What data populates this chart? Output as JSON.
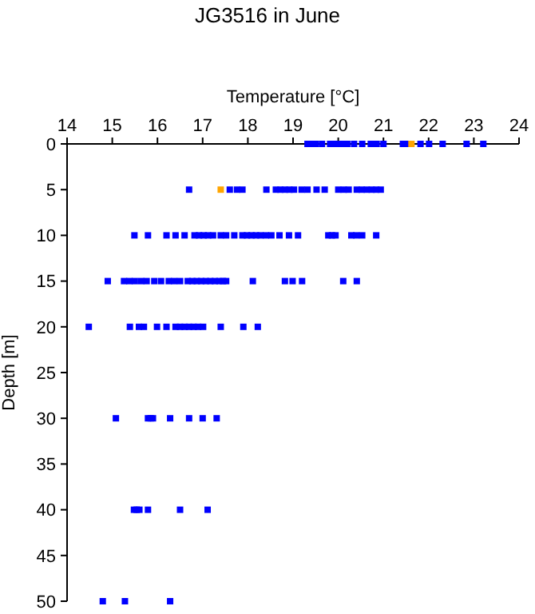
{
  "chart_data": {
    "type": "scatter",
    "title": "JG3516 in June",
    "xlabel": "Temperature [°C]",
    "ylabel": "Depth [m]",
    "xlim": [
      14,
      24
    ],
    "xticks": [
      14,
      15,
      16,
      17,
      18,
      19,
      20,
      21,
      22,
      23,
      24
    ],
    "ylim": [
      50,
      0
    ],
    "yticks": [
      0,
      5,
      10,
      15,
      20,
      25,
      30,
      35,
      40,
      45,
      50
    ],
    "marker": "square",
    "series": [
      {
        "color": "#0000ff",
        "x": [
          19.32,
          19.4,
          19.5,
          19.64,
          19.82,
          19.9,
          20.0,
          20.1,
          20.2,
          20.35,
          20.53,
          20.72,
          20.85,
          21.0,
          21.43,
          21.53,
          21.82,
          22.01,
          22.31,
          22.84,
          23.21,
          16.7,
          17.6,
          17.76,
          17.88,
          18.41,
          18.62,
          18.72,
          18.82,
          18.92,
          19.02,
          19.19,
          19.32,
          19.52,
          19.7,
          20.0,
          20.12,
          20.23,
          20.41,
          20.52,
          20.63,
          20.74,
          20.84,
          20.94,
          15.49,
          15.79,
          16.2,
          16.4,
          16.6,
          16.82,
          16.92,
          17.02,
          17.12,
          17.23,
          17.4,
          17.52,
          17.7,
          17.88,
          17.98,
          18.08,
          18.18,
          18.28,
          18.4,
          18.52,
          18.7,
          18.91,
          19.11,
          19.78,
          19.86,
          19.94,
          20.29,
          20.4,
          20.53,
          20.84,
          14.9,
          15.26,
          15.38,
          15.5,
          15.64,
          15.76,
          15.93,
          16.08,
          16.25,
          16.37,
          16.5,
          16.67,
          16.77,
          16.87,
          16.97,
          17.07,
          17.17,
          17.27,
          17.37,
          17.45,
          17.52,
          18.11,
          18.82,
          18.99,
          19.2,
          20.11,
          20.41,
          14.48,
          15.39,
          15.59,
          15.7,
          15.99,
          16.2,
          16.4,
          16.5,
          16.6,
          16.7,
          16.8,
          16.9,
          17.01,
          17.4,
          17.9,
          18.22,
          15.08,
          15.79,
          15.85,
          15.9,
          16.28,
          16.7,
          17.0,
          17.31,
          15.48,
          15.54,
          15.6,
          15.79,
          16.5,
          17.11,
          14.79,
          15.28,
          16.28
        ],
        "values": [
          0,
          0,
          0,
          0,
          0,
          0,
          0,
          0,
          0,
          0,
          0,
          0,
          0,
          0,
          0,
          0,
          0,
          0,
          0,
          0,
          0,
          5,
          5,
          5,
          5,
          5,
          5,
          5,
          5,
          5,
          5,
          5,
          5,
          5,
          5,
          5,
          5,
          5,
          5,
          5,
          5,
          5,
          5,
          5,
          10,
          10,
          10,
          10,
          10,
          10,
          10,
          10,
          10,
          10,
          10,
          10,
          10,
          10,
          10,
          10,
          10,
          10,
          10,
          10,
          10,
          10,
          10,
          10,
          10,
          10,
          10,
          10,
          10,
          10,
          15,
          15,
          15,
          15,
          15,
          15,
          15,
          15,
          15,
          15,
          15,
          15,
          15,
          15,
          15,
          15,
          15,
          15,
          15,
          15,
          15,
          15,
          15,
          15,
          15,
          15,
          15,
          20,
          20,
          20,
          20,
          20,
          20,
          20,
          20,
          20,
          20,
          20,
          20,
          20,
          20,
          20,
          20,
          30,
          30,
          30,
          30,
          30,
          30,
          30,
          30,
          40,
          40,
          40,
          40,
          40,
          40,
          50,
          50,
          50
        ]
      },
      {
        "color": "#ffa500",
        "x": [
          21.62,
          17.4
        ],
        "values": [
          0,
          5
        ]
      }
    ]
  }
}
